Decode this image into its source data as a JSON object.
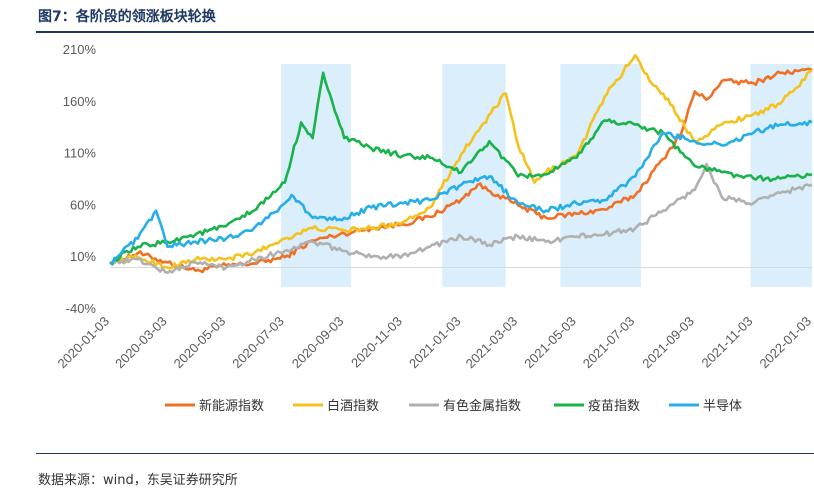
{
  "figure": {
    "title": "图7：各阶段的领涨板块轮换",
    "source": "数据来源：wind，东吴证券研究所"
  },
  "chart_data": {
    "type": "line",
    "title": "",
    "xlabel": "",
    "ylabel": "",
    "ylim": [
      -40,
      210
    ],
    "yticks": [
      "210%",
      "160%",
      "110%",
      "60%",
      "10%",
      "-40%"
    ],
    "yticks_values": [
      210,
      160,
      110,
      60,
      10,
      -40
    ],
    "xlim": [
      "2020-01-03",
      "2022-01-03"
    ],
    "xticks": [
      "2020-01-03",
      "2020-03-03",
      "2020-05-03",
      "2020-07-03",
      "2020-09-03",
      "2020-11-03",
      "2021-01-03",
      "2021-03-03",
      "2021-05-03",
      "2021-07-03",
      "2021-09-03",
      "2021-11-03",
      "2022-01-03"
    ],
    "grid": false,
    "legend_position": "bottom",
    "baseline": 0,
    "highlight_periods": [
      [
        "2020-06-29",
        "2020-09-10"
      ],
      [
        "2020-12-14",
        "2021-02-18"
      ],
      [
        "2021-04-16",
        "2021-07-09"
      ],
      [
        "2021-10-31",
        "2022-01-03"
      ]
    ],
    "highlight_color": "#dbeefc",
    "series": [
      {
        "name": "新能源指数",
        "color": "#f07026",
        "x": [
          "2020-01-03",
          "2020-02-01",
          "2020-03-03",
          "2020-04-01",
          "2020-05-03",
          "2020-06-01",
          "2020-07-03",
          "2020-08-01",
          "2020-09-03",
          "2020-10-01",
          "2020-11-03",
          "2020-12-01",
          "2021-01-03",
          "2021-01-20",
          "2021-02-10",
          "2021-03-03",
          "2021-04-01",
          "2021-05-03",
          "2021-06-01",
          "2021-07-03",
          "2021-08-01",
          "2021-08-20",
          "2021-09-03",
          "2021-09-15",
          "2021-10-01",
          "2021-11-03",
          "2021-12-01",
          "2022-01-03"
        ],
        "y": [
          5,
          14,
          5,
          -3,
          2,
          4,
          10,
          26,
          33,
          38,
          42,
          49,
          66,
          80,
          70,
          60,
          48,
          52,
          56,
          70,
          105,
          130,
          170,
          162,
          180,
          178,
          188,
          190
        ]
      },
      {
        "name": "白酒指数",
        "color": "#f4c21c",
        "x": [
          "2020-01-03",
          "2020-02-01",
          "2020-03-03",
          "2020-04-01",
          "2020-05-03",
          "2020-06-01",
          "2020-07-03",
          "2020-08-01",
          "2020-09-03",
          "2020-10-01",
          "2020-11-03",
          "2020-12-01",
          "2021-01-03",
          "2021-02-18",
          "2021-03-03",
          "2021-03-20",
          "2021-04-01",
          "2021-05-03",
          "2021-06-01",
          "2021-07-03",
          "2021-07-20",
          "2021-08-01",
          "2021-09-03",
          "2021-10-01",
          "2021-11-03",
          "2021-12-01",
          "2022-01-03"
        ],
        "y": [
          5,
          10,
          0,
          8,
          8,
          14,
          28,
          38,
          36,
          38,
          44,
          58,
          110,
          168,
          118,
          82,
          92,
          108,
          165,
          205,
          178,
          168,
          122,
          138,
          148,
          158,
          190
        ]
      },
      {
        "name": "有色金属指数",
        "color": "#b0b0b0",
        "x": [
          "2020-01-03",
          "2020-02-01",
          "2020-03-03",
          "2020-04-01",
          "2020-05-03",
          "2020-06-01",
          "2020-07-03",
          "2020-08-01",
          "2020-09-03",
          "2020-10-01",
          "2020-11-03",
          "2020-12-01",
          "2021-01-03",
          "2021-02-01",
          "2021-03-03",
          "2021-04-01",
          "2021-05-03",
          "2021-06-01",
          "2021-07-03",
          "2021-08-01",
          "2021-09-03",
          "2021-09-15",
          "2021-10-01",
          "2021-11-03",
          "2021-12-01",
          "2022-01-03"
        ],
        "y": [
          5,
          8,
          -5,
          5,
          0,
          8,
          16,
          25,
          16,
          10,
          12,
          20,
          30,
          22,
          30,
          25,
          30,
          32,
          38,
          55,
          75,
          100,
          68,
          62,
          72,
          80
        ]
      },
      {
        "name": "疫苗指数",
        "color": "#1ab24a",
        "x": [
          "2020-01-03",
          "2020-02-01",
          "2020-03-03",
          "2020-04-01",
          "2020-05-03",
          "2020-06-01",
          "2020-07-03",
          "2020-07-20",
          "2020-08-01",
          "2020-08-12",
          "2020-09-03",
          "2020-10-01",
          "2020-11-03",
          "2020-12-01",
          "2021-01-03",
          "2021-02-01",
          "2021-03-03",
          "2021-04-01",
          "2021-05-03",
          "2021-06-01",
          "2021-07-03",
          "2021-08-01",
          "2021-09-03",
          "2021-10-01",
          "2021-11-03",
          "2021-12-01",
          "2022-01-03"
        ],
        "y": [
          5,
          20,
          25,
          32,
          40,
          55,
          82,
          140,
          125,
          188,
          125,
          115,
          108,
          106,
          92,
          122,
          88,
          90,
          106,
          142,
          138,
          130,
          98,
          92,
          86,
          86,
          90
        ]
      },
      {
        "name": "半导体",
        "color": "#26aee8",
        "x": [
          "2020-01-03",
          "2020-02-01",
          "2020-02-20",
          "2020-03-03",
          "2020-04-01",
          "2020-05-03",
          "2020-06-01",
          "2020-07-03",
          "2020-07-10",
          "2020-08-01",
          "2020-09-03",
          "2020-10-01",
          "2020-11-03",
          "2020-12-01",
          "2021-01-03",
          "2021-02-01",
          "2021-03-03",
          "2021-04-01",
          "2021-05-03",
          "2021-06-01",
          "2021-07-03",
          "2021-08-01",
          "2021-09-03",
          "2021-10-01",
          "2021-11-03",
          "2021-12-01",
          "2022-01-03"
        ],
        "y": [
          5,
          28,
          55,
          20,
          25,
          28,
          38,
          62,
          70,
          48,
          48,
          58,
          62,
          65,
          80,
          88,
          62,
          55,
          62,
          65,
          88,
          130,
          122,
          118,
          130,
          138,
          140
        ]
      }
    ]
  }
}
